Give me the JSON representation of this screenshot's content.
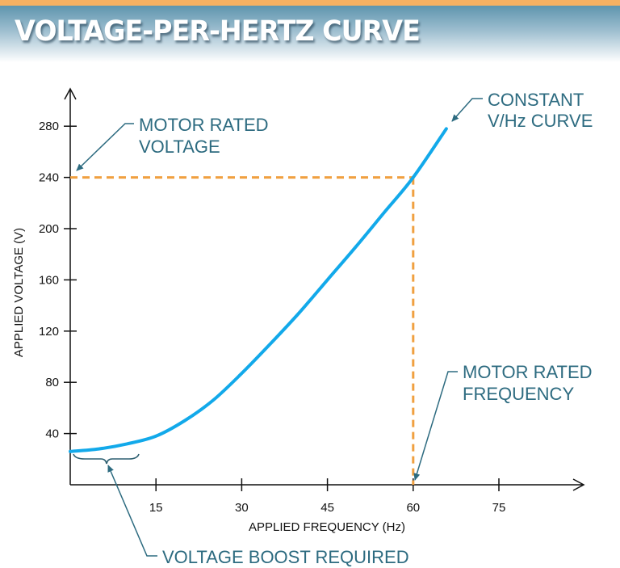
{
  "title": "VOLTAGE-PER-HERTZ CURVE",
  "colors": {
    "curve": "#12a9ea",
    "guide": "#f0a040",
    "annotation": "#2d6b80",
    "header_accent": "#f5b163"
  },
  "chart_data": {
    "type": "line",
    "title": "VOLTAGE-PER-HERTZ CURVE",
    "xlabel": "APPLIED FREQUENCY (Hz)",
    "ylabel": "APPLIED VOLTAGE (V)",
    "xticks": [
      15,
      30,
      45,
      60,
      75
    ],
    "yticks": [
      40,
      80,
      120,
      160,
      200,
      240,
      280
    ],
    "xlim": [
      0,
      88
    ],
    "ylim": [
      0,
      305
    ],
    "grid": false,
    "series": [
      {
        "x": [
          0,
          5,
          10,
          15,
          20,
          25,
          30,
          35,
          40,
          45,
          50,
          55,
          60,
          65.8
        ],
        "y": [
          26,
          28,
          32,
          38,
          50,
          66,
          87,
          110,
          134,
          160,
          186,
          213,
          240,
          278
        ]
      }
    ],
    "guides": {
      "rated_frequency": 60,
      "rated_voltage": 240
    },
    "annotations": {
      "rated_voltage": [
        "MOTOR RATED",
        "VOLTAGE"
      ],
      "constant_curve": [
        "CONSTANT",
        "V/Hz CURVE"
      ],
      "rated_frequency": [
        "MOTOR RATED",
        "FREQUENCY"
      ],
      "boost": "VOLTAGE BOOST REQUIRED"
    }
  }
}
